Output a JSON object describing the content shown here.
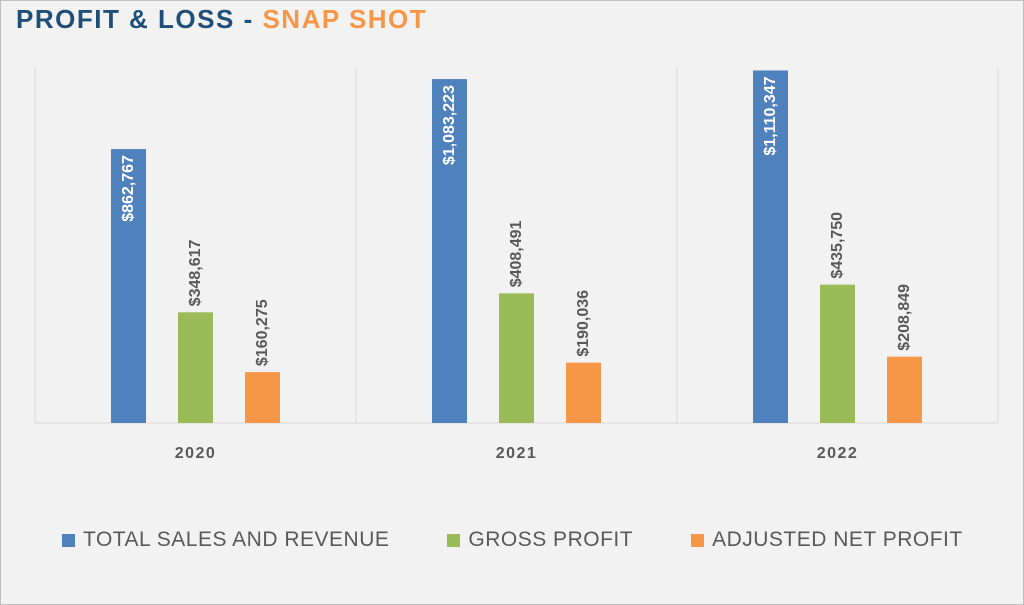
{
  "title": {
    "part1": "PROFIT & LOSS - ",
    "part2": "SNAP SHOT"
  },
  "colors": {
    "title_primary": "#1f4e79",
    "title_accent": "#f79646",
    "total_sales": "#4f81bd",
    "gross_profit": "#9bbb59",
    "adjusted_net_profit": "#f79646",
    "gridline": "#d9d9d9",
    "label_dark": "#595959",
    "label_inside": "#ffffff"
  },
  "chart_data": {
    "type": "bar",
    "title": "PROFIT & LOSS - SNAP SHOT",
    "categories": [
      "2020",
      "2021",
      "2022"
    ],
    "series": [
      {
        "name": "TOTAL SALES AND REVENUE",
        "color": "#4f81bd",
        "values": [
          862767,
          1083223,
          1110347
        ],
        "labels": [
          "$862,767",
          "$1,083,223",
          "$1,110,347"
        ],
        "label_position": "inside"
      },
      {
        "name": "GROSS PROFIT",
        "color": "#9bbb59",
        "values": [
          348617,
          408491,
          435750
        ],
        "labels": [
          "$348,617",
          "$408,491",
          "$435,750"
        ],
        "label_position": "outside"
      },
      {
        "name": "ADJUSTED NET PROFIT",
        "color": "#f79646",
        "values": [
          160275,
          190036,
          208849
        ],
        "labels": [
          "$160,275",
          "$190,036",
          "$208,849"
        ],
        "label_position": "outside"
      }
    ],
    "xlabel": "",
    "ylabel": "",
    "ylim": [
      0,
      1200000
    ],
    "grid": "vertical category separators",
    "legend": "bottom"
  }
}
